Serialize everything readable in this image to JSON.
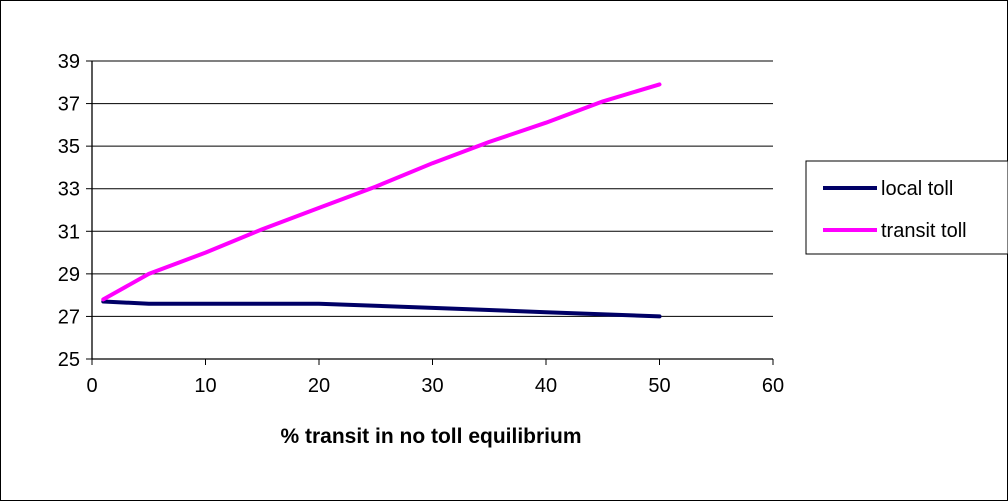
{
  "chart_data": {
    "type": "line",
    "title": "",
    "xlabel": "% transit in no toll equilibrium",
    "ylabel": "",
    "xlim": [
      0,
      60
    ],
    "ylim": [
      25,
      39
    ],
    "x_ticks": [
      "0",
      "10",
      "20",
      "30",
      "40",
      "50",
      "60"
    ],
    "y_ticks": [
      "25",
      "27",
      "29",
      "31",
      "33",
      "35",
      "37",
      "39"
    ],
    "grid": "horizontal",
    "legend_position": "right",
    "series": [
      {
        "name": "local toll",
        "color": "#000066",
        "x": [
          1,
          5,
          10,
          20,
          30,
          40,
          50
        ],
        "y": [
          27.7,
          27.6,
          27.6,
          27.6,
          27.4,
          27.2,
          27.0
        ]
      },
      {
        "name": "transit toll",
        "color": "#ff00ff",
        "x": [
          1,
          5,
          10,
          15,
          20,
          25,
          30,
          35,
          40,
          45,
          50
        ],
        "y": [
          27.8,
          29.0,
          30.0,
          31.1,
          32.1,
          33.1,
          34.2,
          35.2,
          36.1,
          37.1,
          37.9
        ]
      }
    ]
  }
}
